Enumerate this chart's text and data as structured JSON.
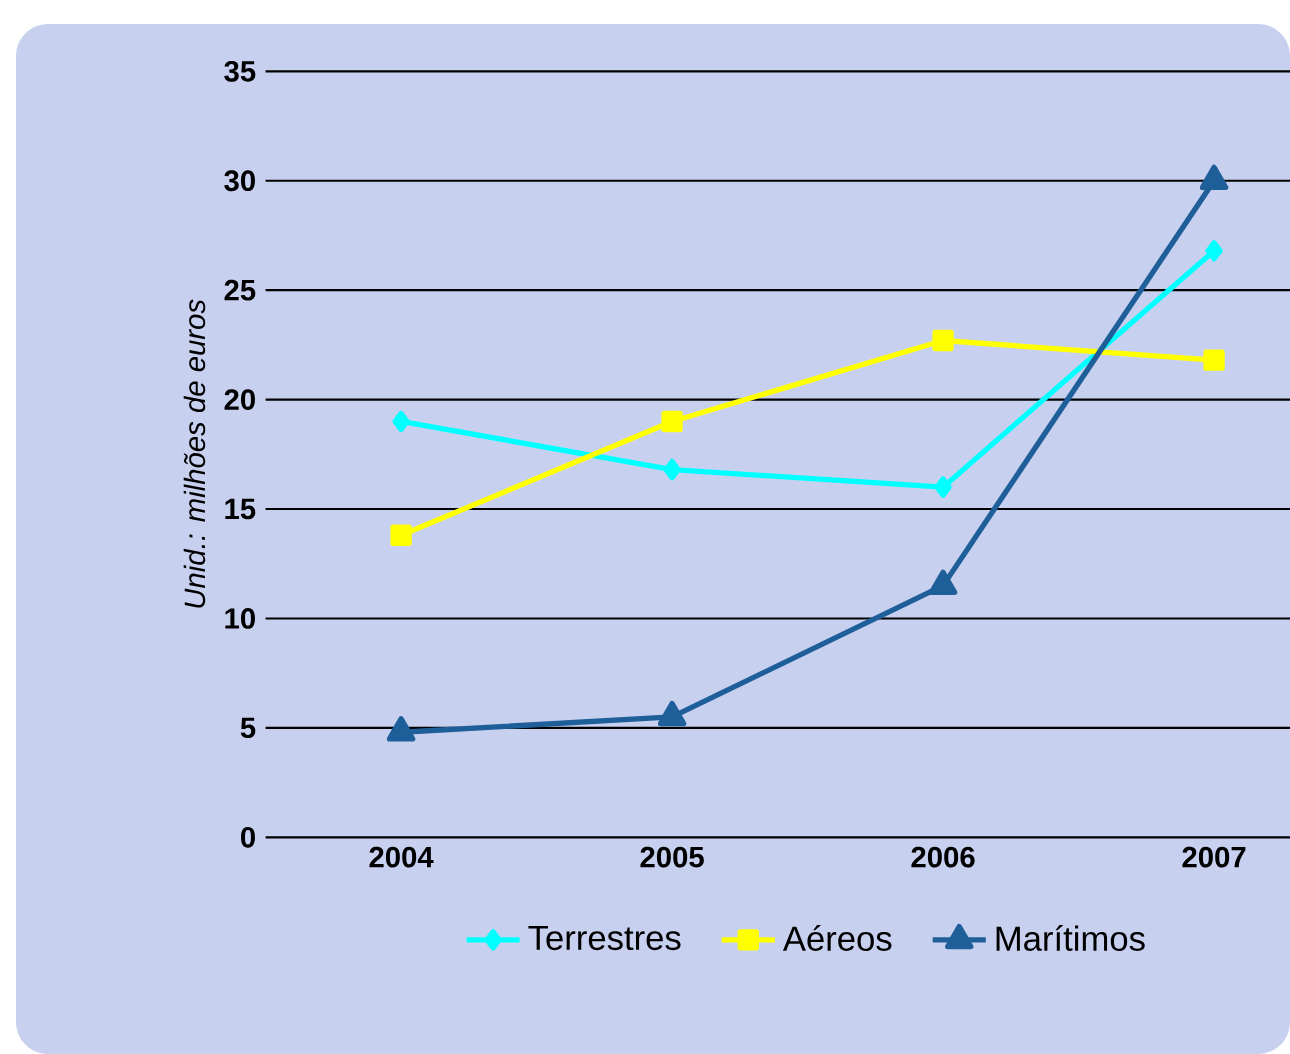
{
  "chart_data": {
    "type": "line",
    "ylabel": "Unid.: milhões de euros",
    "categories": [
      "2004",
      "2005",
      "2006",
      "2007"
    ],
    "series": [
      {
        "name": "Terrestres",
        "color": "#00ffff",
        "marker": "diamond",
        "values": [
          19,
          16.8,
          16,
          26.8
        ]
      },
      {
        "name": "Aéreos",
        "color": "#ffff00",
        "marker": "square",
        "values": [
          13.8,
          19,
          22.7,
          21.8
        ]
      },
      {
        "name": "Marítimos",
        "color": "#1f5f99",
        "marker": "triangle",
        "values": [
          4.8,
          5.5,
          11.5,
          30
        ]
      }
    ],
    "ylim": [
      0,
      35
    ],
    "yticks": [
      0,
      5,
      10,
      15,
      20,
      25,
      30,
      35
    ],
    "grid": "y",
    "legend": "bottom",
    "line_style": "solid"
  }
}
